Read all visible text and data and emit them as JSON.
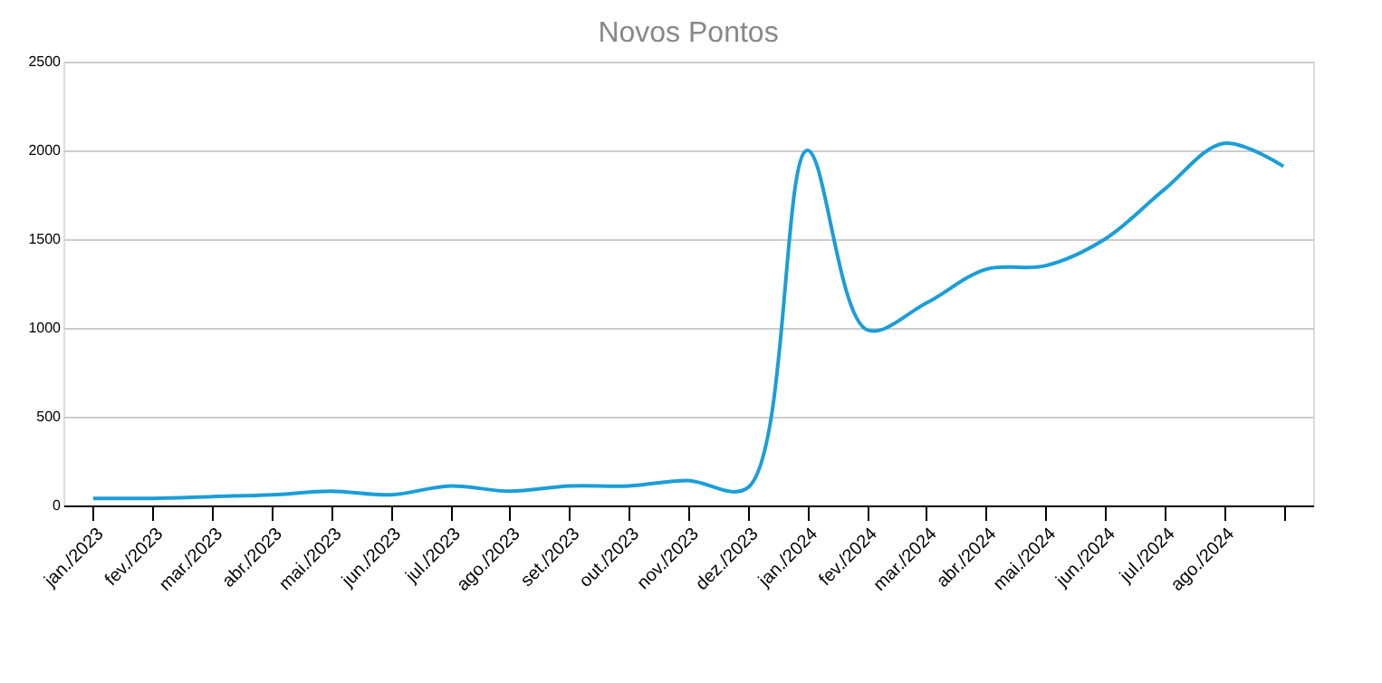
{
  "chart_data": {
    "type": "line",
    "title": "Novos Pontos",
    "categories": [
      "jan./2023",
      "fev./2023",
      "mar./2023",
      "abr./2023",
      "mai./2023",
      "jun./2023",
      "jul./2023",
      "ago./2023",
      "set./2023",
      "out./2023",
      "nov./2023",
      "dez./2023",
      "jan./2024",
      "fev./2024",
      "mar./2024",
      "abr./2024",
      "mai./2024",
      "jun./2024",
      "jul./2024",
      "ago./2024",
      null
    ],
    "series": [
      {
        "color": "#1a9ed9",
        "values": [
          40,
          40,
          50,
          60,
          80,
          60,
          110,
          80,
          110,
          110,
          140,
          100,
          2000,
          990,
          1140,
          1330,
          1350,
          1500,
          1780,
          2040,
          1910
        ]
      }
    ],
    "ylim": [
      0,
      2500
    ],
    "yticks": [
      0,
      500,
      1000,
      1500,
      2000,
      2500
    ],
    "grid": "y",
    "marker": "none",
    "line_style": "solid"
  }
}
